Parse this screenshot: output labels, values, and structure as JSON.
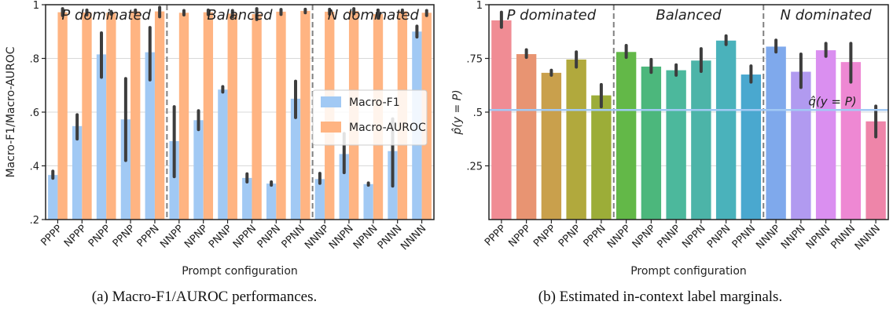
{
  "chart_data": [
    {
      "type": "bar",
      "panel": "left",
      "categories": [
        "PPPP",
        "NPPP",
        "PNPP",
        "PPNP",
        "PPPN",
        "NNPP",
        "NPNP",
        "PNNP",
        "NPPN",
        "PNPN",
        "PPNN",
        "NNNP",
        "NNPN",
        "NPNN",
        "PNNN",
        "NNNN"
      ],
      "series": [
        {
          "name": "Macro-F1",
          "color": "#a1c9f4",
          "values": [
            0.366,
            0.548,
            0.815,
            0.573,
            0.823,
            0.492,
            0.57,
            0.684,
            0.355,
            0.334,
            0.65,
            0.351,
            0.444,
            0.332,
            0.455,
            0.9
          ],
          "err_low": [
            0.354,
            0.5,
            0.73,
            0.42,
            0.72,
            0.36,
            0.535,
            0.675,
            0.34,
            0.328,
            0.58,
            0.335,
            0.375,
            0.328,
            0.325,
            0.88
          ],
          "err_high": [
            0.38,
            0.59,
            0.895,
            0.725,
            0.915,
            0.62,
            0.605,
            0.695,
            0.37,
            0.34,
            0.715,
            0.372,
            0.52,
            0.336,
            0.575,
            0.92
          ]
        },
        {
          "name": "Macro-AUROC",
          "color": "#ffb482",
          "values": [
            0.972,
            0.971,
            0.97,
            0.975,
            0.975,
            0.97,
            0.972,
            0.967,
            0.965,
            0.974,
            0.977,
            0.974,
            0.976,
            0.965,
            0.975,
            0.97
          ],
          "err_low": [
            0.96,
            0.962,
            0.965,
            0.97,
            0.955,
            0.962,
            0.963,
            0.955,
            0.945,
            0.964,
            0.97,
            0.965,
            0.966,
            0.95,
            0.97,
            0.96
          ],
          "err_high": [
            0.985,
            0.98,
            0.975,
            0.98,
            0.99,
            0.978,
            0.98,
            0.978,
            0.985,
            0.982,
            0.983,
            0.983,
            0.985,
            0.98,
            0.98,
            0.978
          ]
        }
      ],
      "ylim": [
        0.2,
        1.0
      ],
      "yticks": [
        ".2",
        ".4",
        ".6",
        ".8",
        "1"
      ],
      "ylabel": "Macro-F1/Macro-AUROC",
      "xlabel": "Prompt configuration",
      "legend_position": "center-right",
      "group_labels": [
        "P dominated",
        "Balanced",
        "N dominated"
      ],
      "caption": "(a)  Macro-F1/AUROC performances."
    },
    {
      "type": "bar",
      "panel": "right",
      "categories": [
        "PPPP",
        "NPPP",
        "PNPP",
        "PPNP",
        "PPPN",
        "NNPP",
        "NPNP",
        "PNNP",
        "NPPN",
        "PNPN",
        "PPNN",
        "NNNP",
        "NNPN",
        "NPNN",
        "PNNN",
        "NNNN"
      ],
      "values": [
        0.927,
        0.77,
        0.683,
        0.745,
        0.578,
        0.78,
        0.712,
        0.695,
        0.74,
        0.833,
        0.675,
        0.805,
        0.688,
        0.788,
        0.733,
        0.457
      ],
      "err_low": [
        0.895,
        0.755,
        0.672,
        0.71,
        0.525,
        0.755,
        0.685,
        0.672,
        0.69,
        0.815,
        0.64,
        0.78,
        0.615,
        0.76,
        0.64,
        0.385
      ],
      "err_high": [
        0.965,
        0.79,
        0.695,
        0.78,
        0.628,
        0.81,
        0.745,
        0.72,
        0.795,
        0.855,
        0.715,
        0.835,
        0.77,
        0.82,
        0.82,
        0.528
      ],
      "colors": [
        "#f08c94",
        "#e89472",
        "#c9a04c",
        "#b1a93d",
        "#9cad38",
        "#63b848",
        "#4cb77c",
        "#4cb89c",
        "#4cb4a8",
        "#4ab2bb",
        "#4aa8cf",
        "#7fa9ec",
        "#b19af0",
        "#da8ff0",
        "#ee88d3",
        "#ee85a9"
      ],
      "reference_line": {
        "value": 0.51,
        "label": "q̂(y = P)",
        "color": "#a1c9f4"
      },
      "ylim": [
        0.0,
        1.0
      ],
      "yticks": [
        ".25",
        ".5",
        ".75",
        "1"
      ],
      "ylabel": "p̂(y = P)",
      "xlabel": "Prompt configuration",
      "group_labels": [
        "P dominated",
        "Balanced",
        "N dominated"
      ],
      "caption": "(b)  Estimated in-context label marginals."
    }
  ]
}
